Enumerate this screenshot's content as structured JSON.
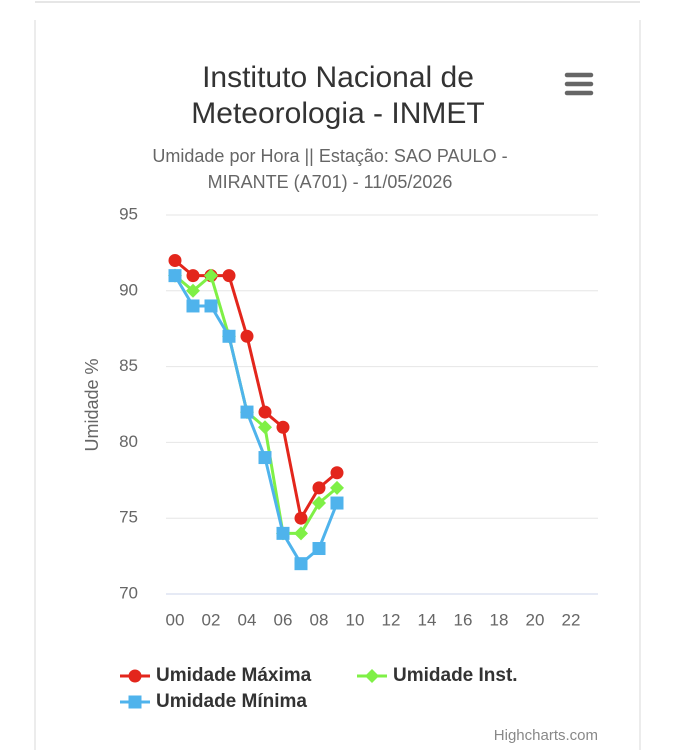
{
  "chart_data": {
    "type": "line",
    "title": "Instituto Nacional de Meteorologia - INMET",
    "subtitle": "Umidade por Hora || Estação: SAO PAULO - MIRANTE (A701) - 11/05/2026",
    "y_axis_label": "Umidade %",
    "credits": "Highcharts.com",
    "categories": [
      "00",
      null,
      "02",
      null,
      "04",
      null,
      "06",
      null,
      "08",
      null,
      "10",
      null,
      "12",
      null,
      "14",
      null,
      "16",
      null,
      "18",
      null,
      "20",
      null,
      "22",
      null
    ],
    "series": [
      {
        "name": "Umidade Máxima",
        "color": "#e3261c",
        "marker": "circle",
        "values": [
          92,
          91,
          91,
          91,
          87,
          82,
          81,
          75,
          77,
          78,
          null,
          null,
          null,
          null,
          null,
          null,
          null,
          null,
          null,
          null,
          null,
          null,
          null,
          null
        ]
      },
      {
        "name": "Umidade Inst.",
        "color": "#7ff046",
        "marker": "diamond",
        "values": [
          91,
          90,
          91,
          87,
          82,
          81,
          74,
          74,
          76,
          77,
          null,
          null,
          null,
          null,
          null,
          null,
          null,
          null,
          null,
          null,
          null,
          null,
          null,
          null
        ]
      },
      {
        "name": "Umidade Mínima",
        "color": "#4fb3ec",
        "marker": "square",
        "values": [
          91,
          89,
          89,
          87,
          82,
          79,
          74,
          72,
          73,
          76,
          null,
          null,
          null,
          null,
          null,
          null,
          null,
          null,
          null,
          null,
          null,
          null,
          null,
          null
        ]
      }
    ],
    "ylim": [
      70,
      95
    ],
    "yticks": [
      70,
      75,
      80,
      85,
      90,
      95
    ],
    "grid": true
  }
}
